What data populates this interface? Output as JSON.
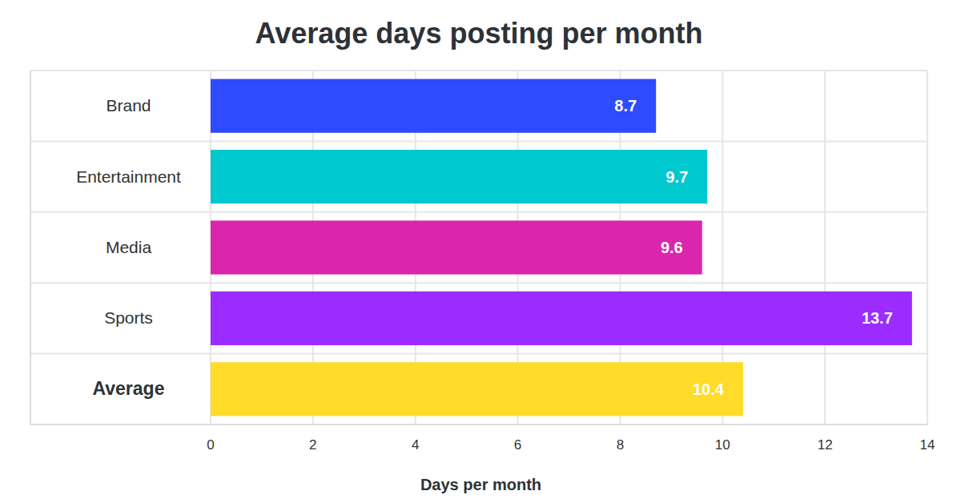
{
  "chart_data": {
    "type": "bar",
    "orientation": "horizontal",
    "title": "Average days posting per month",
    "x_label": "Days per month",
    "categories": [
      "Brand",
      "Entertainment",
      "Media",
      "Sports",
      "Average"
    ],
    "values": [
      8.7,
      9.7,
      9.6,
      13.7,
      10.4
    ],
    "colors": [
      "#2e4bff",
      "#00c8cf",
      "#d926ac",
      "#9b2bff",
      "#ffdb2a"
    ],
    "xlim": [
      0,
      14
    ],
    "xticks": [
      0,
      2,
      4,
      6,
      8,
      10,
      12,
      14
    ],
    "grid": true,
    "data_labels": true
  }
}
